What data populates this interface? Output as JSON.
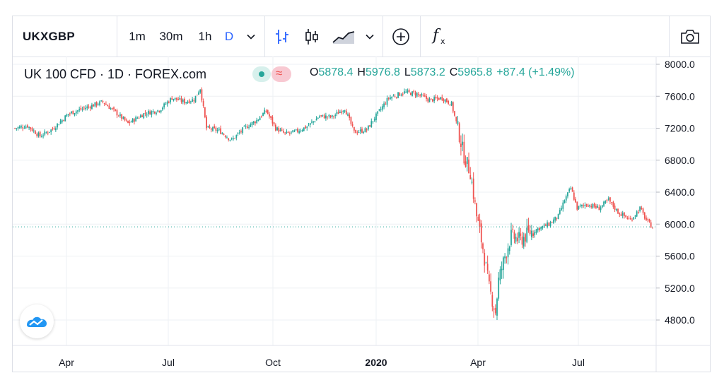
{
  "toolbar": {
    "symbol": "UKXGBP",
    "intervals": [
      "1m",
      "30m",
      "1h",
      "D"
    ],
    "active_interval": "D",
    "icons": [
      "chevron-down-icon",
      "bar-chart-icon",
      "candlestick-icon",
      "area-chart-icon",
      "chevron-down-icon",
      "plus-circle-icon",
      "function-icon",
      "camera-icon"
    ]
  },
  "legend": {
    "title": "UK 100 CFD · 1D · FOREX.com",
    "o_label": "O",
    "o_value": "5878.4",
    "h_label": "H",
    "h_value": "5976.8",
    "l_label": "L",
    "l_value": "5873.2",
    "c_label": "C",
    "c_value": "5965.8",
    "change": "+87.4 (+1.49%)"
  },
  "colors": {
    "up": "#26a69a",
    "down": "#ef5350",
    "accent": "#2962ff",
    "price_line": "#26a69a",
    "grid": "#eef0f4"
  },
  "chart_data": {
    "type": "candlestick",
    "x_labels": [
      "Apr",
      "Jul",
      "Oct",
      "2020",
      "Apr",
      "Jul"
    ],
    "y_ticks": [
      "8000.0",
      "7600.0",
      "7200.0",
      "6800.0",
      "6400.0",
      "6000.0",
      "5600.0",
      "5200.0",
      "4800.0"
    ],
    "ylim": [
      4600,
      8100
    ],
    "last_price": 5965.8,
    "close_path": [
      [
        0,
        7200
      ],
      [
        8,
        7230
      ],
      [
        16,
        7100
      ],
      [
        24,
        7190
      ],
      [
        34,
        7380
      ],
      [
        44,
        7450
      ],
      [
        56,
        7530
      ],
      [
        64,
        7400
      ],
      [
        72,
        7260
      ],
      [
        82,
        7380
      ],
      [
        92,
        7430
      ],
      [
        100,
        7580
      ],
      [
        108,
        7530
      ],
      [
        114,
        7560
      ],
      [
        118,
        7700
      ],
      [
        122,
        7200
      ],
      [
        130,
        7170
      ],
      [
        138,
        7050
      ],
      [
        146,
        7200
      ],
      [
        154,
        7300
      ],
      [
        160,
        7420
      ],
      [
        166,
        7200
      ],
      [
        172,
        7130
      ],
      [
        178,
        7150
      ],
      [
        186,
        7220
      ],
      [
        194,
        7350
      ],
      [
        202,
        7340
      ],
      [
        210,
        7450
      ],
      [
        216,
        7150
      ],
      [
        224,
        7180
      ],
      [
        228,
        7300
      ],
      [
        238,
        7580
      ],
      [
        248,
        7650
      ],
      [
        256,
        7630
      ],
      [
        264,
        7550
      ],
      [
        272,
        7580
      ],
      [
        278,
        7500
      ],
      [
        282,
        7200
      ],
      [
        286,
        6850
      ],
      [
        290,
        6650
      ],
      [
        294,
        6100
      ],
      [
        298,
        5700
      ],
      [
        302,
        5200
      ],
      [
        306,
        4900
      ],
      [
        308,
        5300
      ],
      [
        312,
        5600
      ],
      [
        316,
        5850
      ],
      [
        322,
        5800
      ],
      [
        328,
        5900
      ],
      [
        334,
        5950
      ],
      [
        340,
        6000
      ],
      [
        346,
        6100
      ],
      [
        350,
        6300
      ],
      [
        354,
        6450
      ],
      [
        358,
        6200
      ],
      [
        364,
        6250
      ],
      [
        372,
        6200
      ],
      [
        378,
        6300
      ],
      [
        384,
        6150
      ],
      [
        392,
        6050
      ],
      [
        398,
        6200
      ],
      [
        402,
        6050
      ],
      [
        406,
        5960
      ]
    ]
  }
}
